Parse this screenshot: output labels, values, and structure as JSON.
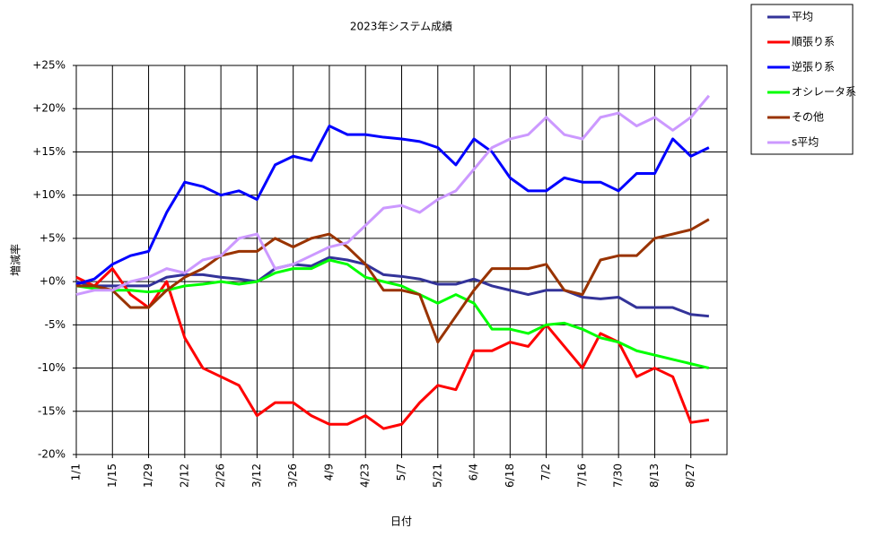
{
  "chart_data": {
    "type": "line",
    "title": "2023年システム成績",
    "x_label": "日付",
    "y_label": "増減率",
    "categories": [
      "1/1",
      null,
      "1/15",
      null,
      "1/29",
      null,
      "2/12",
      null,
      "2/26",
      null,
      "3/12",
      null,
      "3/26",
      null,
      "4/9",
      null,
      "4/23",
      null,
      "5/7",
      null,
      "5/21",
      null,
      "6/4",
      null,
      "6/18",
      null,
      "7/2",
      null,
      "7/16",
      null,
      "7/30",
      null,
      "8/13",
      null,
      "8/27",
      null
    ],
    "ylim": [
      -20,
      25
    ],
    "yticks": [
      {
        "value": -20,
        "label": "-20%"
      },
      {
        "value": -15,
        "label": "-15%"
      },
      {
        "value": -10,
        "label": "-10%"
      },
      {
        "value": -5,
        "label": "-5%"
      },
      {
        "value": 0,
        "label": "+0%"
      },
      {
        "value": 5,
        "label": "+5%"
      },
      {
        "value": 10,
        "label": "+10%"
      },
      {
        "value": 15,
        "label": "+15%"
      },
      {
        "value": 20,
        "label": "+20%"
      },
      {
        "value": 25,
        "label": "+25%"
      }
    ],
    "grid": true,
    "legend": "top-right",
    "series": [
      {
        "name": "平均",
        "color": "#333399",
        "values": [
          0,
          -0.5,
          -0.5,
          -0.5,
          -0.5,
          0.5,
          0.8,
          0.8,
          0.5,
          0.3,
          0,
          1.5,
          2,
          1.8,
          2.8,
          2.5,
          2,
          0.8,
          0.6,
          0.3,
          -0.3,
          -0.3,
          0.3,
          -0.5,
          -1,
          -1.5,
          -1,
          -1,
          -1.8,
          -2,
          -1.8,
          -3,
          -3,
          -3,
          -3.8,
          -4
        ]
      },
      {
        "name": "順張り系",
        "color": "#ff0000",
        "values": [
          0.5,
          -0.5,
          1.5,
          -1.5,
          -3,
          0,
          -6.5,
          -10,
          -11,
          -12,
          -15.5,
          -14,
          -14,
          -15.5,
          -16.5,
          -16.5,
          -15.5,
          -17,
          -16.5,
          -14,
          -12,
          -12.5,
          -8,
          -8,
          -7,
          -7.5,
          -5,
          -7.5,
          -10,
          -6,
          -7,
          -11,
          -10,
          -11,
          -16.3,
          -16
        ]
      },
      {
        "name": "逆張り系",
        "color": "#0000ff",
        "values": [
          -0.3,
          0.3,
          2,
          3,
          3.5,
          8,
          11.5,
          11,
          10,
          10.5,
          9.5,
          13.5,
          14.5,
          14,
          18,
          17,
          17,
          16.7,
          16.5,
          16.2,
          15.5,
          13.5,
          16.5,
          15,
          12,
          10.5,
          10.5,
          12,
          11.5,
          11.5,
          10.5,
          12.5,
          12.5,
          16.5,
          14.5,
          15.5
        ]
      },
      {
        "name": "オシレータ系",
        "color": "#00ff00",
        "values": [
          -0.5,
          -0.8,
          -1,
          -1,
          -1.2,
          -1,
          -0.5,
          -0.3,
          0,
          -0.3,
          0,
          1,
          1.5,
          1.5,
          2.5,
          2,
          0.5,
          0,
          -0.5,
          -1.5,
          -2.5,
          -1.5,
          -2.5,
          -5.5,
          -5.5,
          -6,
          -5,
          -4.8,
          -5.5,
          -6.5,
          -7,
          -8,
          -8.5,
          -9,
          -9.5,
          -10
        ]
      },
      {
        "name": "その他",
        "color": "#993300",
        "values": [
          -0.5,
          -0.5,
          -1,
          -3,
          -3,
          -1,
          0.5,
          1.5,
          3,
          3.5,
          3.5,
          5,
          4,
          5,
          5.5,
          4,
          2,
          -1,
          -1,
          -1.5,
          -7,
          -4,
          -1,
          1.5,
          1.5,
          1.5,
          2,
          -1,
          -1.5,
          2.5,
          3,
          3,
          5,
          5.5,
          6,
          7.2
        ]
      },
      {
        "name": "s平均",
        "color": "#cc99ff",
        "values": [
          -1.5,
          -1,
          -1,
          0,
          0.5,
          1.5,
          1,
          2.5,
          3,
          5,
          5.5,
          1.5,
          2,
          3,
          4,
          4.5,
          6.5,
          8.5,
          8.8,
          8,
          9.5,
          10.5,
          13,
          15.5,
          16.5,
          17,
          19,
          17,
          16.5,
          19,
          19.5,
          18,
          19,
          17.5,
          19,
          21.5
        ]
      }
    ]
  }
}
